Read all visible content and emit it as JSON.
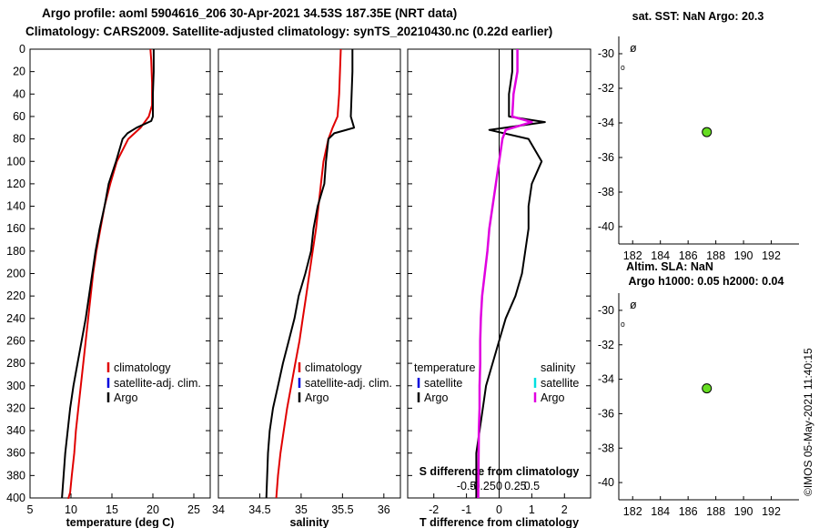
{
  "header": {
    "title_line1": "Argo profile: aoml 5904616_206 30-Apr-2021 34.53S 187.35E (NRT data)",
    "title_line2": "Climatology: CARS2009. Satellite-adjusted climatology: synTS_20210430.nc (0.22d earlier)"
  },
  "colors": {
    "climatology": "#e00000",
    "satellite": "#0000dd",
    "argo": "#000000",
    "salinity_sat": "#00e0e0",
    "salinity_argo": "#e000e0",
    "marker": "#66dd22"
  },
  "depth_ticks": [
    "0",
    "20",
    "40",
    "60",
    "80",
    "100",
    "120",
    "140",
    "160",
    "180",
    "200",
    "220",
    "240",
    "260",
    "280",
    "300",
    "320",
    "340",
    "360",
    "380",
    "400"
  ],
  "legend": {
    "climatology": "climatology",
    "satellite": "satellite-adj. clim.",
    "argo": "Argo"
  },
  "legend_diff": {
    "temperature": "temperature",
    "salinity": "salinity",
    "satellite": "satellite",
    "argo": "Argo"
  },
  "chart_data": [
    {
      "type": "line",
      "xlabel": "temperature (deg C)",
      "xlim": [
        5,
        27
      ],
      "xticks": [
        "5",
        "10",
        "15",
        "20",
        "25"
      ],
      "ylim": [
        0,
        400
      ],
      "series": [
        {
          "name": "climatology",
          "x": [
            19.7,
            19.8,
            19.9,
            19.9,
            19.5,
            18.5,
            17.0,
            15.6,
            14.8,
            14.1,
            13.6,
            13.1,
            12.7,
            12.4,
            12.1,
            11.8,
            11.5,
            11.2,
            10.9,
            10.6,
            10.4,
            10.1,
            9.9,
            9.7,
            9.6
          ],
          "y": [
            0,
            10,
            30,
            50,
            60,
            70,
            80,
            100,
            120,
            140,
            160,
            180,
            200,
            220,
            240,
            260,
            280,
            300,
            320,
            340,
            360,
            380,
            395,
            400,
            400
          ]
        },
        {
          "name": "Argo",
          "x": [
            20.1,
            20.1,
            20.0,
            20.0,
            19.8,
            18.0,
            16.9,
            16.3,
            15.5,
            14.6,
            14.1,
            13.5,
            13.0,
            12.6,
            12.2,
            11.8,
            11.3,
            10.8,
            10.3,
            9.9,
            9.6,
            9.3,
            9.1,
            8.9
          ],
          "y": [
            0,
            20,
            40,
            60,
            64,
            70,
            75,
            80,
            100,
            120,
            140,
            160,
            180,
            200,
            220,
            240,
            260,
            280,
            300,
            320,
            340,
            360,
            380,
            400
          ]
        }
      ]
    },
    {
      "type": "line",
      "xlabel": "salinity",
      "xlim": [
        34,
        36.2
      ],
      "xticks": [
        "34",
        "34.5",
        "35",
        "35.5",
        "36"
      ],
      "ylim": [
        0,
        400
      ],
      "series": [
        {
          "name": "climatology",
          "x": [
            35.48,
            35.47,
            35.46,
            35.44,
            35.38,
            35.33,
            35.27,
            35.24,
            35.21,
            35.18,
            35.14,
            35.1,
            35.06,
            35.02,
            34.98,
            34.93,
            34.88,
            34.83,
            34.79,
            34.75,
            34.72,
            34.7
          ],
          "y": [
            0,
            20,
            40,
            60,
            70,
            80,
            100,
            120,
            140,
            160,
            180,
            200,
            220,
            240,
            260,
            280,
            300,
            320,
            340,
            360,
            380,
            400
          ]
        },
        {
          "name": "Argo",
          "x": [
            35.62,
            35.62,
            35.61,
            35.6,
            35.64,
            35.4,
            35.33,
            35.3,
            35.28,
            35.2,
            35.15,
            35.12,
            35.05,
            34.97,
            34.92,
            34.85,
            34.78,
            34.72,
            34.66,
            34.62,
            34.6,
            34.58
          ],
          "y": [
            0,
            20,
            40,
            60,
            70,
            75,
            80,
            100,
            120,
            140,
            160,
            180,
            200,
            220,
            240,
            260,
            280,
            300,
            320,
            340,
            360,
            400
          ]
        }
      ]
    },
    {
      "type": "line",
      "xlabel": "T difference from climatology",
      "xlabel_top": "S difference from climatology",
      "xlim": [
        -2.8,
        2.8
      ],
      "xticks": [
        "-2",
        "-1",
        "0",
        "1",
        "2"
      ],
      "xticks_top": [
        "-0.5",
        "-0.25",
        "0",
        "0.25",
        "0.5"
      ],
      "ylim": [
        0,
        400
      ],
      "series": [
        {
          "name": "temperature Argo",
          "x": [
            0.4,
            0.4,
            0.3,
            0.3,
            1.4,
            -0.3,
            0.9,
            1.3,
            1.0,
            0.9,
            0.9,
            0.8,
            0.7,
            0.5,
            0.2,
            0.0,
            -0.2,
            -0.4,
            -0.5,
            -0.6,
            -0.7,
            -0.7
          ],
          "y": [
            0,
            20,
            40,
            60,
            65,
            72,
            80,
            100,
            120,
            140,
            160,
            180,
            200,
            220,
            240,
            260,
            280,
            300,
            320,
            340,
            360,
            400
          ]
        },
        {
          "name": "salinity Argo",
          "x": [
            0.28,
            0.28,
            0.22,
            0.2,
            0.5,
            0.1,
            0.05,
            0.0,
            -0.05,
            -0.1,
            -0.15,
            -0.18,
            -0.22,
            -0.26,
            -0.28,
            -0.29,
            -0.29,
            -0.3,
            -0.3,
            -0.31,
            -0.32
          ],
          "x_units": "-1 to 1 scale",
          "y": [
            0,
            20,
            40,
            60,
            65,
            72,
            80,
            100,
            120,
            140,
            160,
            180,
            200,
            220,
            240,
            260,
            280,
            300,
            320,
            340,
            400
          ]
        }
      ]
    },
    {
      "type": "scatter",
      "title": "sat. SST: NaN Argo: 20.3",
      "xlim": [
        181,
        194
      ],
      "ylim": [
        -41,
        -29
      ],
      "xticks": [
        "182",
        "184",
        "186",
        "188",
        "190",
        "192"
      ],
      "yticks": [
        "-30",
        "-32",
        "-34",
        "-36",
        "-38",
        "-40"
      ],
      "points": [
        {
          "x": 187.35,
          "y": -34.53
        }
      ]
    },
    {
      "type": "scatter",
      "title": "Altim. SLA: NaN",
      "subtitle": "Argo h1000: 0.05 h2000: 0.04",
      "xlim": [
        181,
        194
      ],
      "ylim": [
        -41,
        -29
      ],
      "xticks": [
        "182",
        "184",
        "186",
        "188",
        "190",
        "192"
      ],
      "yticks": [
        "-30",
        "-32",
        "-34",
        "-36",
        "-38",
        "-40"
      ],
      "points": [
        {
          "x": 187.35,
          "y": -34.53
        }
      ]
    }
  ],
  "side_text": "©IMOS 05-May-2021 11:40:15"
}
